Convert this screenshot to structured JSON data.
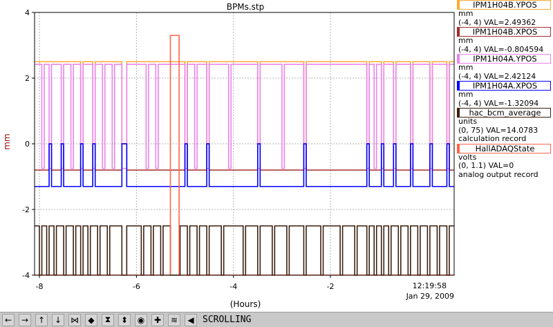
{
  "chart_data": {
    "type": "line",
    "title": "BPMs.stp",
    "ylabel": "mm",
    "xlabel": "(Hours)",
    "xlim": [
      -8.1,
      0.55
    ],
    "ylim": [
      -4,
      4
    ],
    "xticks": [
      "-8",
      "-6",
      "-4",
      "-2"
    ],
    "yticks": [
      "4",
      "2",
      "0",
      "-2",
      "-4"
    ],
    "timestamp": "12:19:58",
    "date": "Jan 29, 2009",
    "grid": true,
    "series": [
      {
        "name": "IPM1H04B.YPOS",
        "color": "#ffa830",
        "base": 2.5,
        "low": 0.0,
        "drops": [
          [
            -7.15,
            -7.1
          ],
          [
            -6.9,
            -6.85
          ],
          [
            -6.3,
            -6.2
          ],
          [
            -5.0,
            -4.95
          ],
          [
            -4.55,
            -4.5
          ],
          [
            -3.5,
            -3.45
          ],
          [
            -2.55,
            -2.5
          ],
          [
            -1.25,
            -1.2
          ],
          [
            -0.95,
            -0.9
          ],
          [
            -0.7,
            -0.65
          ],
          [
            -0.35,
            -0.3
          ],
          [
            0.05,
            0.1
          ],
          [
            0.4,
            0.45
          ]
        ]
      },
      {
        "name": "IPM1H04B.XPOS",
        "color": "#a52a2a",
        "base": -0.8,
        "low": 0.0,
        "drops": [
          [
            -7.8,
            -7.75
          ],
          [
            -7.55,
            -7.5
          ],
          [
            -7.15,
            -7.1
          ],
          [
            -6.9,
            -6.85
          ],
          [
            -6.3,
            -6.2
          ],
          [
            -5.0,
            -4.95
          ],
          [
            -4.55,
            -4.5
          ],
          [
            -3.5,
            -3.45
          ],
          [
            -2.55,
            -2.5
          ],
          [
            -1.25,
            -1.2
          ],
          [
            -0.95,
            -0.9
          ],
          [
            -0.7,
            -0.65
          ],
          [
            -0.35,
            -0.3
          ],
          [
            0.05,
            0.1
          ],
          [
            0.4,
            0.45
          ]
        ]
      },
      {
        "name": "IPM1H04A.YPOS",
        "color": "#ee82ee",
        "base": 2.42,
        "low": -0.75,
        "drops": [
          [
            -7.95,
            -7.9
          ],
          [
            -7.8,
            -7.75
          ],
          [
            -7.55,
            -7.5
          ],
          [
            -7.35,
            -7.3
          ],
          [
            -7.15,
            -7.1
          ],
          [
            -6.9,
            -6.85
          ],
          [
            -6.7,
            -6.65
          ],
          [
            -6.5,
            -6.45
          ],
          [
            -6.3,
            -6.2
          ],
          [
            -5.8,
            -5.75
          ],
          [
            -5.6,
            -5.55
          ],
          [
            -5.0,
            -4.95
          ],
          [
            -4.8,
            -4.75
          ],
          [
            -4.55,
            -4.5
          ],
          [
            -4.1,
            -4.05
          ],
          [
            -3.5,
            -3.45
          ],
          [
            -3.0,
            -2.95
          ],
          [
            -2.55,
            -2.5
          ],
          [
            -1.25,
            -1.2
          ],
          [
            -1.1,
            -1.05
          ],
          [
            -0.95,
            -0.9
          ],
          [
            -0.7,
            -0.65
          ],
          [
            -0.35,
            -0.3
          ],
          [
            0.05,
            0.1
          ],
          [
            0.4,
            0.45
          ]
        ]
      },
      {
        "name": "IPM1H04A.XPOS",
        "color": "#0000ff",
        "base": -1.3,
        "low": 0.0,
        "drops": [
          [
            -7.8,
            -7.75
          ],
          [
            -7.55,
            -7.5
          ],
          [
            -7.15,
            -7.1
          ],
          [
            -6.9,
            -6.85
          ],
          [
            -6.3,
            -6.2
          ],
          [
            -5.0,
            -4.95
          ],
          [
            -4.55,
            -4.5
          ],
          [
            -3.5,
            -3.45
          ],
          [
            -2.55,
            -2.5
          ],
          [
            -1.25,
            -1.2
          ],
          [
            -0.95,
            -0.9
          ],
          [
            -0.7,
            -0.65
          ],
          [
            -0.35,
            -0.3
          ],
          [
            0.05,
            0.1
          ],
          [
            0.4,
            0.45
          ]
        ]
      },
      {
        "name": "hac_bcm_average",
        "color": "#3a1f0f",
        "base": -2.5,
        "low": -4.0,
        "drops": [
          [
            -8.0,
            -7.95
          ],
          [
            -7.85,
            -7.8
          ],
          [
            -7.7,
            -7.65
          ],
          [
            -7.5,
            -7.45
          ],
          [
            -7.3,
            -7.25
          ],
          [
            -7.15,
            -7.1
          ],
          [
            -7.0,
            -6.95
          ],
          [
            -6.8,
            -6.75
          ],
          [
            -6.6,
            -6.55
          ],
          [
            -6.3,
            -6.2
          ],
          [
            -5.9,
            -5.85
          ],
          [
            -5.7,
            -5.65
          ],
          [
            -5.5,
            -5.45
          ],
          [
            -5.3,
            -5.1
          ],
          [
            -4.95,
            -4.9
          ],
          [
            -4.75,
            -4.7
          ],
          [
            -4.55,
            -4.5
          ],
          [
            -4.25,
            -4.2
          ],
          [
            -3.8,
            -3.75
          ],
          [
            -3.5,
            -3.45
          ],
          [
            -3.2,
            -3.15
          ],
          [
            -2.9,
            -2.85
          ],
          [
            -2.55,
            -2.5
          ],
          [
            -2.2,
            -2.15
          ],
          [
            -1.8,
            -1.75
          ],
          [
            -1.5,
            -1.45
          ],
          [
            -1.25,
            -1.2
          ],
          [
            -1.1,
            -1.05
          ],
          [
            -0.95,
            -0.9
          ],
          [
            -0.8,
            -0.75
          ],
          [
            -0.6,
            -0.55
          ],
          [
            -0.4,
            -0.35
          ],
          [
            -0.2,
            -0.15
          ],
          [
            0.0,
            0.05
          ],
          [
            0.2,
            0.25
          ],
          [
            0.4,
            0.45
          ]
        ]
      },
      {
        "name": "HallADAQState",
        "color": "#ff6347",
        "base": -4.0,
        "low": 3.3,
        "drops": [
          [
            -5.3,
            -5.12
          ]
        ]
      }
    ],
    "legend": [
      {
        "name": "IPM1H04B.YPOS",
        "color": "#ffa830",
        "lines": [
          "mm",
          "(-4, 4) VAL=2.49362"
        ]
      },
      {
        "name": "IPM1H04B.XPOS",
        "color": "#a52a2a",
        "lines": [
          "mm",
          "(-4, 4) VAL=-0.804594"
        ]
      },
      {
        "name": "IPM1H04A.YPOS",
        "color": "#ee82ee",
        "lines": [
          "mm",
          "(-4, 4) VAL=2.42124"
        ]
      },
      {
        "name": "IPM1H04A.XPOS",
        "color": "#0000ff",
        "lines": [
          "mm",
          "(-4, 4) VAL=-1.32094"
        ]
      },
      {
        "name": "hac_bcm_average",
        "color": "#3a1f0f",
        "lines": [
          "units",
          "(0, 75) VAL=14.0783",
          "calculation record"
        ]
      },
      {
        "name": "HallADAQState",
        "color": "#ff6347",
        "lines": [
          "volts",
          "(0, 1.1) VAL=0",
          "analog output record"
        ]
      }
    ]
  },
  "toolbar": {
    "buttons": [
      "arrow-left-icon",
      "arrow-right-icon",
      "arrow-up-icon",
      "arrow-down-icon",
      "zoom-in-x-icon",
      "zoom-out-x-icon",
      "zoom-in-y-icon",
      "zoom-out-y-icon",
      "stop-icon",
      "crosshair-icon",
      "config-icon",
      "back-icon"
    ],
    "glyphs": [
      "←",
      "→",
      "↑",
      "↓",
      "⋈",
      "◆",
      "⧗",
      "⬍",
      "◉",
      "✚",
      "≋",
      "◀"
    ],
    "status": "SCROLLING"
  }
}
